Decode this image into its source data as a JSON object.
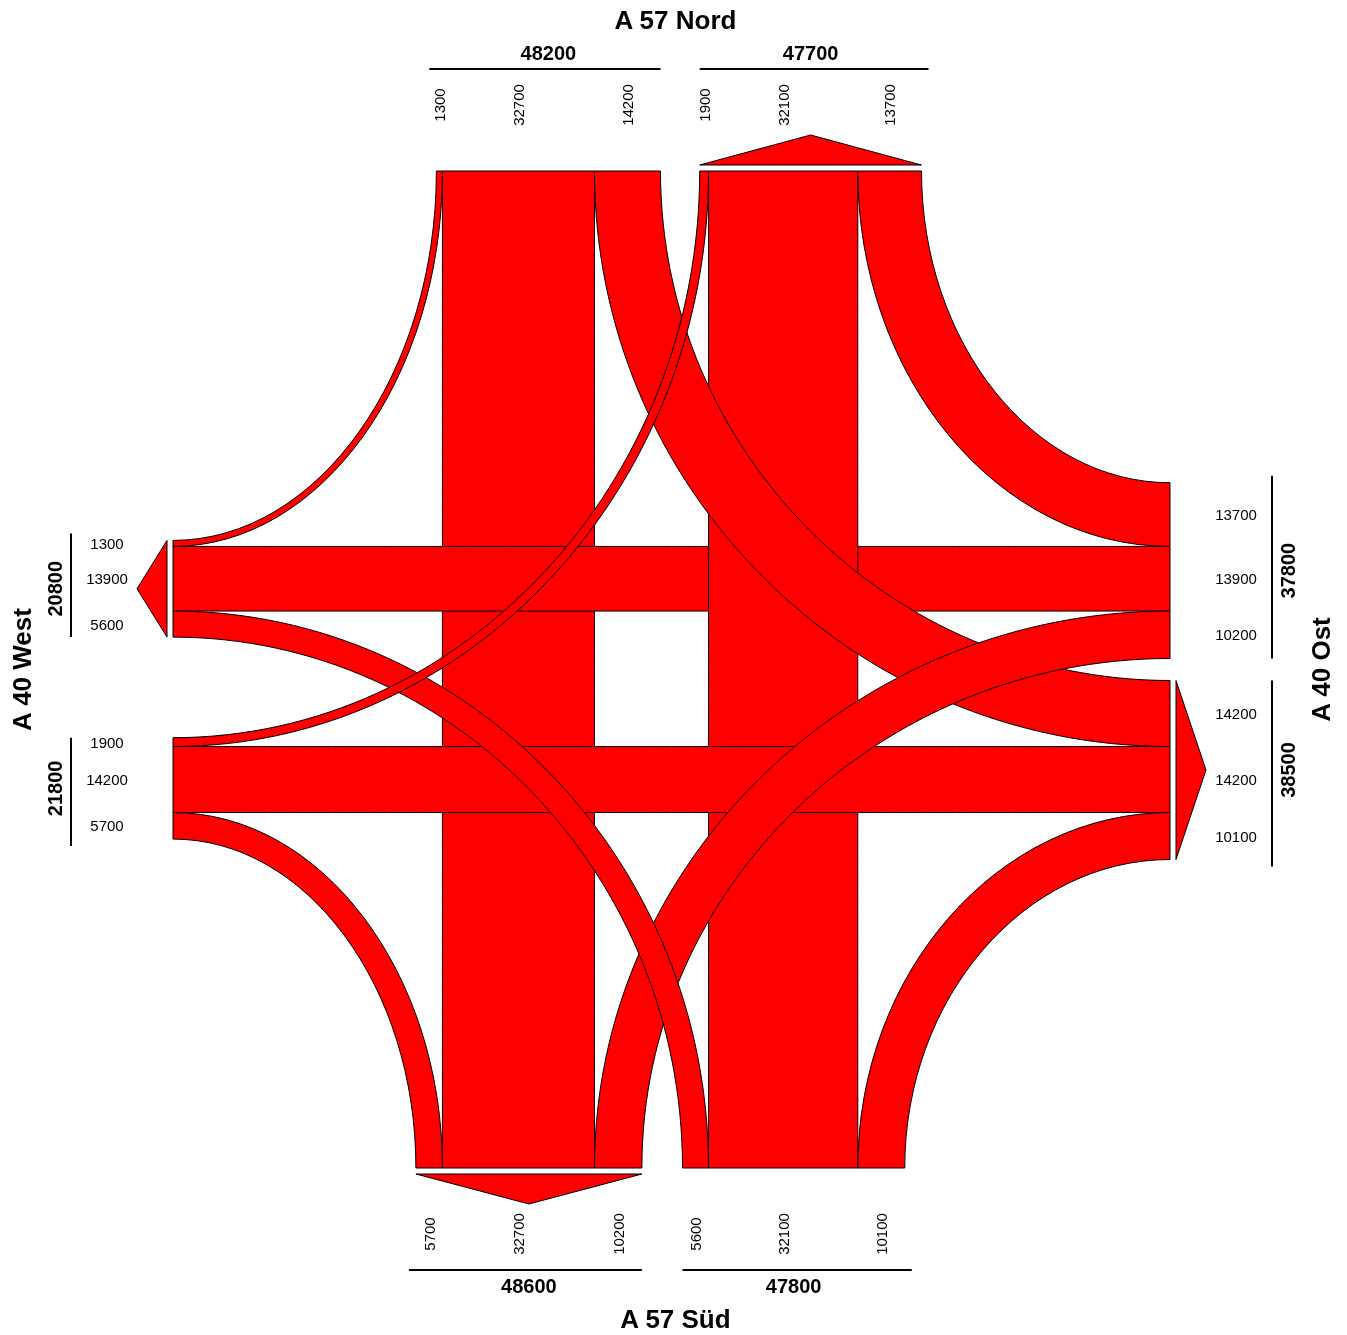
{
  "chart_data": {
    "type": "other",
    "categories": [
      "A 57 Nord",
      "A 40 Ost",
      "A 57 Süd",
      "A 40 West"
    ],
    "series": [
      {
        "values": [
          1300,
          13700,
          10100,
          5700
        ]
      },
      {
        "values": [
          32700,
          13900,
          32100,
          14200
        ]
      },
      {
        "values": [
          14200,
          10200,
          5600,
          1900
        ]
      },
      {
        "values": [
          13700,
          10100,
          5700,
          1300
        ]
      },
      {
        "values": [
          32100,
          14200,
          32700,
          13900
        ]
      },
      {
        "values": [
          1900,
          14200,
          10200,
          5600
        ]
      }
    ],
    "data_labels": true,
    "totals": [
      [
        "48200",
        "47700"
      ],
      [
        "37800",
        "38500"
      ],
      [
        "47800",
        "48600"
      ],
      [
        "21800",
        "20800"
      ]
    ],
    "color": "#ff0000"
  }
}
